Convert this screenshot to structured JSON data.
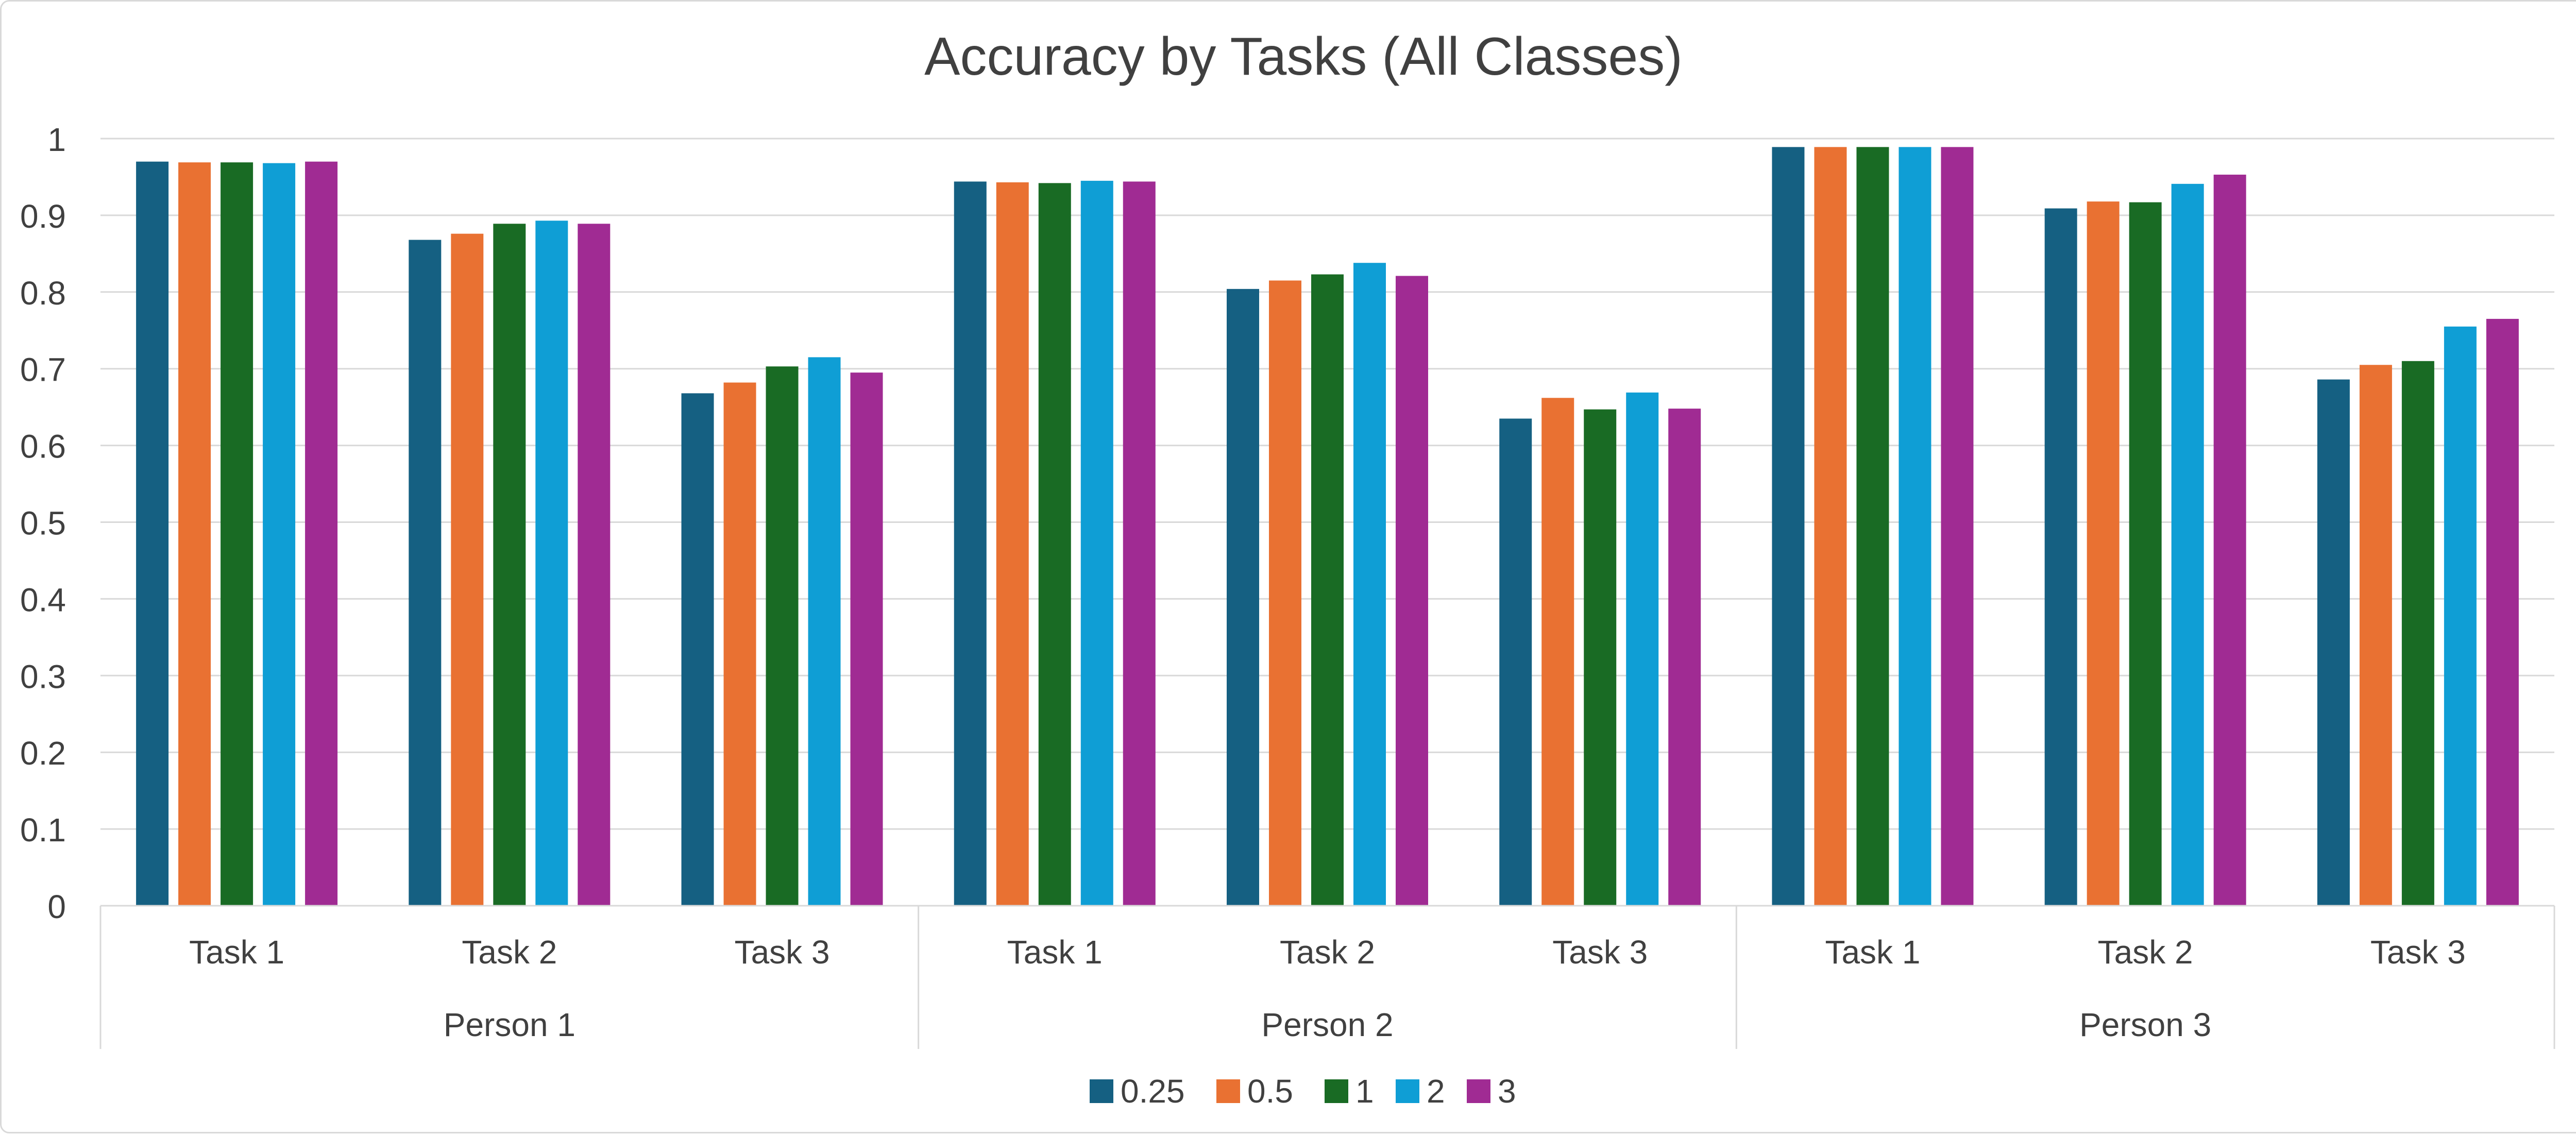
{
  "chart_data": {
    "type": "bar",
    "title": "Accuracy by Tasks (All Classes)",
    "xlabel": "",
    "ylabel": "",
    "ylim": [
      0,
      1
    ],
    "yticks": [
      0,
      0.1,
      0.2,
      0.3,
      0.4,
      0.5,
      0.6,
      0.7,
      0.8,
      0.9,
      1
    ],
    "ytick_labels": [
      "0",
      "0.1",
      "0.2",
      "0.3",
      "0.4",
      "0.5",
      "0.6",
      "0.7",
      "0.8",
      "0.9",
      "1"
    ],
    "grid": true,
    "legend_position": "bottom-center",
    "groups": [
      {
        "label": "Person 1",
        "categories": [
          "Task 1",
          "Task 2",
          "Task 3"
        ]
      },
      {
        "label": "Person 2",
        "categories": [
          "Task 1",
          "Task 2",
          "Task 3"
        ]
      },
      {
        "label": "Person 3",
        "categories": [
          "Task 1",
          "Task 2",
          "Task 3"
        ]
      }
    ],
    "categories": [
      "Task 1",
      "Task 2",
      "Task 3",
      "Task 1",
      "Task 2",
      "Task 3",
      "Task 1",
      "Task 2",
      "Task 3"
    ],
    "series": [
      {
        "name": "0.25",
        "color": "#156082",
        "values": [
          0.97,
          0.868,
          0.668,
          0.944,
          0.804,
          0.635,
          0.989,
          0.909,
          0.686
        ]
      },
      {
        "name": "0.5",
        "color": "#E97132",
        "values": [
          0.969,
          0.876,
          0.682,
          0.943,
          0.815,
          0.662,
          0.989,
          0.918,
          0.705
        ]
      },
      {
        "name": "1",
        "color": "#196B24",
        "values": [
          0.969,
          0.889,
          0.703,
          0.942,
          0.823,
          0.647,
          0.989,
          0.917,
          0.71
        ]
      },
      {
        "name": "2",
        "color": "#0F9ED5",
        "values": [
          0.968,
          0.893,
          0.715,
          0.945,
          0.838,
          0.669,
          0.989,
          0.941,
          0.755
        ]
      },
      {
        "name": "3",
        "color": "#A02B93",
        "values": [
          0.97,
          0.889,
          0.695,
          0.944,
          0.821,
          0.648,
          0.989,
          0.953,
          0.765
        ]
      }
    ]
  }
}
